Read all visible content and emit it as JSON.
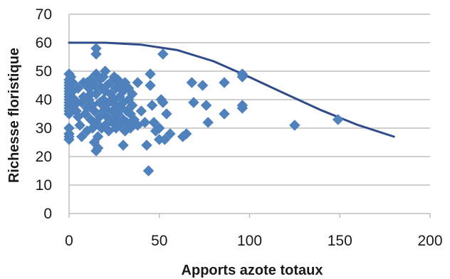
{
  "chart_data": {
    "type": "scatter",
    "title": "",
    "xlabel": "Apports azote totaux",
    "ylabel": "Richesse floristique",
    "xlim": [
      0,
      200
    ],
    "ylim": [
      0,
      70
    ],
    "x_ticks": [
      "0",
      "50",
      "100",
      "150",
      "200"
    ],
    "y_ticks": [
      "0",
      "10",
      "20",
      "30",
      "40",
      "50",
      "60",
      "70"
    ],
    "grid": "horizontal",
    "legend": "none",
    "colors": {
      "points": "#4f81bd",
      "curve": "#2f4b8a",
      "grid": "#bfbfbf",
      "axis": "#bfbfbf"
    },
    "series": [
      {
        "kind": "scatter",
        "marker": "diamond",
        "points": [
          [
            0,
            49
          ],
          [
            0,
            47
          ],
          [
            0,
            46
          ],
          [
            0,
            45
          ],
          [
            0,
            44
          ],
          [
            0,
            43
          ],
          [
            0,
            42
          ],
          [
            0,
            41
          ],
          [
            0,
            40
          ],
          [
            0,
            39
          ],
          [
            0,
            38
          ],
          [
            0,
            37
          ],
          [
            0,
            36
          ],
          [
            0,
            35
          ],
          [
            0,
            30
          ],
          [
            0,
            28
          ],
          [
            0,
            27
          ],
          [
            0,
            26
          ],
          [
            1,
            48
          ],
          [
            2,
            46
          ],
          [
            2,
            43
          ],
          [
            2,
            37
          ],
          [
            3,
            40
          ],
          [
            3,
            38
          ],
          [
            4,
            36
          ],
          [
            5,
            44
          ],
          [
            5,
            34
          ],
          [
            6,
            31
          ],
          [
            7,
            39
          ],
          [
            7,
            27
          ],
          [
            8,
            46
          ],
          [
            8,
            41
          ],
          [
            9,
            35
          ],
          [
            10,
            46
          ],
          [
            10,
            37
          ],
          [
            10,
            29
          ],
          [
            11,
            44
          ],
          [
            11,
            40
          ],
          [
            12,
            47
          ],
          [
            12,
            42
          ],
          [
            12,
            33
          ],
          [
            13,
            38
          ],
          [
            13,
            30
          ],
          [
            14,
            45
          ],
          [
            14,
            36
          ],
          [
            14,
            25
          ],
          [
            15,
            58
          ],
          [
            15,
            56
          ],
          [
            15,
            49
          ],
          [
            15,
            42
          ],
          [
            15,
            32
          ],
          [
            15,
            22
          ],
          [
            16,
            27
          ],
          [
            16,
            23
          ],
          [
            17,
            47
          ],
          [
            17,
            39
          ],
          [
            17,
            34
          ],
          [
            18,
            44
          ],
          [
            18,
            30
          ],
          [
            19,
            48
          ],
          [
            19,
            40
          ],
          [
            19,
            36
          ],
          [
            20,
            50
          ],
          [
            20,
            43
          ],
          [
            20,
            37
          ],
          [
            20,
            31
          ],
          [
            21,
            45
          ],
          [
            21,
            34
          ],
          [
            22,
            39
          ],
          [
            22,
            29
          ],
          [
            23,
            46
          ],
          [
            23,
            42
          ],
          [
            24,
            36
          ],
          [
            24,
            32
          ],
          [
            25,
            48
          ],
          [
            25,
            40
          ],
          [
            25,
            33
          ],
          [
            26,
            44
          ],
          [
            26,
            38
          ],
          [
            26,
            30
          ],
          [
            27,
            47
          ],
          [
            27,
            35
          ],
          [
            28,
            41
          ],
          [
            28,
            31
          ],
          [
            29,
            45
          ],
          [
            29,
            37
          ],
          [
            30,
            43
          ],
          [
            30,
            39
          ],
          [
            30,
            33
          ],
          [
            30,
            24
          ],
          [
            31,
            46
          ],
          [
            31,
            29
          ],
          [
            32,
            36
          ],
          [
            32,
            32
          ],
          [
            33,
            44
          ],
          [
            33,
            40
          ],
          [
            34,
            35
          ],
          [
            34,
            30
          ],
          [
            35,
            42
          ],
          [
            35,
            38
          ],
          [
            35,
            31
          ],
          [
            36,
            33
          ],
          [
            38,
            46
          ],
          [
            38,
            31
          ],
          [
            40,
            36
          ],
          [
            42,
            32
          ],
          [
            43,
            24
          ],
          [
            44,
            15
          ],
          [
            45,
            49
          ],
          [
            45,
            45
          ],
          [
            46,
            38
          ],
          [
            47,
            32
          ],
          [
            48,
            29
          ],
          [
            50,
            30
          ],
          [
            50,
            26
          ],
          [
            51,
            40
          ],
          [
            52,
            56
          ],
          [
            52,
            39
          ],
          [
            53,
            26
          ],
          [
            54,
            35
          ],
          [
            56,
            28
          ],
          [
            63,
            27
          ],
          [
            65,
            28
          ],
          [
            68,
            46
          ],
          [
            69,
            39
          ],
          [
            74,
            45
          ],
          [
            76,
            38
          ],
          [
            77,
            32
          ],
          [
            86,
            46
          ],
          [
            86,
            35
          ],
          [
            96,
            49
          ],
          [
            96,
            48
          ],
          [
            96,
            38
          ],
          [
            96,
            37
          ],
          [
            125,
            31
          ],
          [
            149,
            33
          ]
        ]
      },
      {
        "kind": "line",
        "points": [
          [
            0,
            60
          ],
          [
            20,
            60
          ],
          [
            40,
            59.3
          ],
          [
            60,
            57.4
          ],
          [
            80,
            53.5
          ],
          [
            100,
            47.9
          ],
          [
            120,
            42.0
          ],
          [
            140,
            36.2
          ],
          [
            160,
            31.1
          ],
          [
            180,
            27
          ]
        ]
      }
    ]
  }
}
